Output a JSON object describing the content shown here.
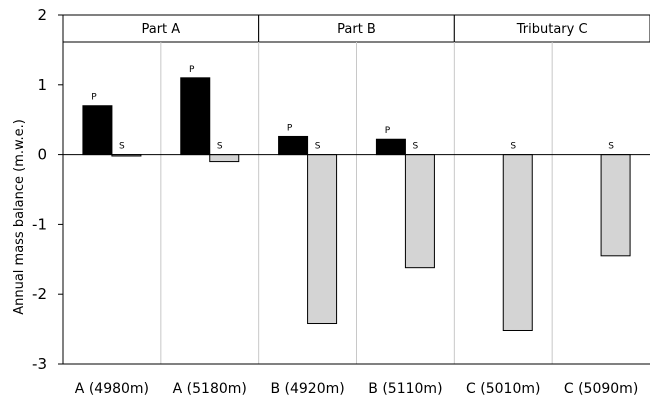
{
  "chart_data": {
    "type": "bar",
    "ylabel": "Annual mass balance (m.w.e.)",
    "ylim": [
      -3,
      2
    ],
    "yticks": [
      2,
      1,
      0,
      -1,
      -2,
      -3
    ],
    "categories": [
      "A (4980m)",
      "A (5180m)",
      "B (4920m)",
      "B (5110m)",
      "C (5010m)",
      "C (5090m)"
    ],
    "groups": [
      {
        "name": "Part A",
        "categories": [
          0,
          1
        ]
      },
      {
        "name": "Part B",
        "categories": [
          2,
          3
        ]
      },
      {
        "name": "Tributary C",
        "categories": [
          4,
          5
        ]
      }
    ],
    "series": [
      {
        "name": "P",
        "color": "#000000",
        "values": [
          0.7,
          1.1,
          0.26,
          0.22,
          null,
          null
        ]
      },
      {
        "name": "S",
        "color": "#d4d4d4",
        "values": [
          -0.02,
          -0.1,
          -2.42,
          -1.62,
          -2.52,
          -1.45
        ]
      }
    ],
    "grid": false
  }
}
